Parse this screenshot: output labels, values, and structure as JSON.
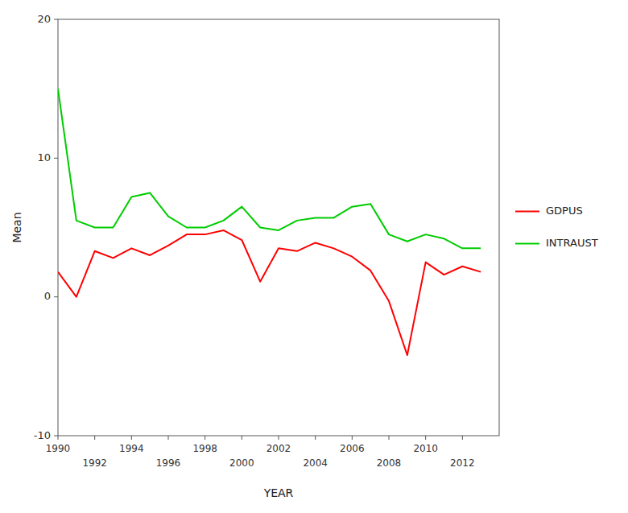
{
  "chart_data": {
    "type": "line",
    "xlabel": "YEAR",
    "ylabel": "Mean",
    "x": [
      1990,
      1991,
      1992,
      1993,
      1994,
      1995,
      1996,
      1997,
      1998,
      1999,
      2000,
      2001,
      2002,
      2003,
      2004,
      2005,
      2006,
      2007,
      2008,
      2009,
      2010,
      2011,
      2012,
      2013
    ],
    "series": [
      {
        "name": "GDPUS",
        "color": "#ff0000",
        "values": [
          1.8,
          0.0,
          3.3,
          2.8,
          3.5,
          3.0,
          3.7,
          4.5,
          4.5,
          4.8,
          4.1,
          1.1,
          3.5,
          3.3,
          3.9,
          3.5,
          2.9,
          1.9,
          -0.3,
          -4.2,
          2.5,
          1.6,
          2.2,
          1.8
        ]
      },
      {
        "name": "INTRAUST",
        "color": "#00cc00",
        "values": [
          15.0,
          5.5,
          5.0,
          5.0,
          7.2,
          7.5,
          5.8,
          5.0,
          5.0,
          5.5,
          6.5,
          5.0,
          4.8,
          5.5,
          5.7,
          5.7,
          6.5,
          6.7,
          4.5,
          4.0,
          4.5,
          4.2,
          3.5,
          3.5
        ]
      }
    ],
    "xlim": [
      1990,
      2014
    ],
    "ylim": [
      -10,
      20
    ],
    "xticks": [
      1990,
      1992,
      1994,
      1996,
      1998,
      2000,
      2002,
      2004,
      2006,
      2008,
      2010,
      2012
    ],
    "yticks": [
      -10,
      0,
      10,
      20
    ],
    "grid": false,
    "legend": "right"
  }
}
